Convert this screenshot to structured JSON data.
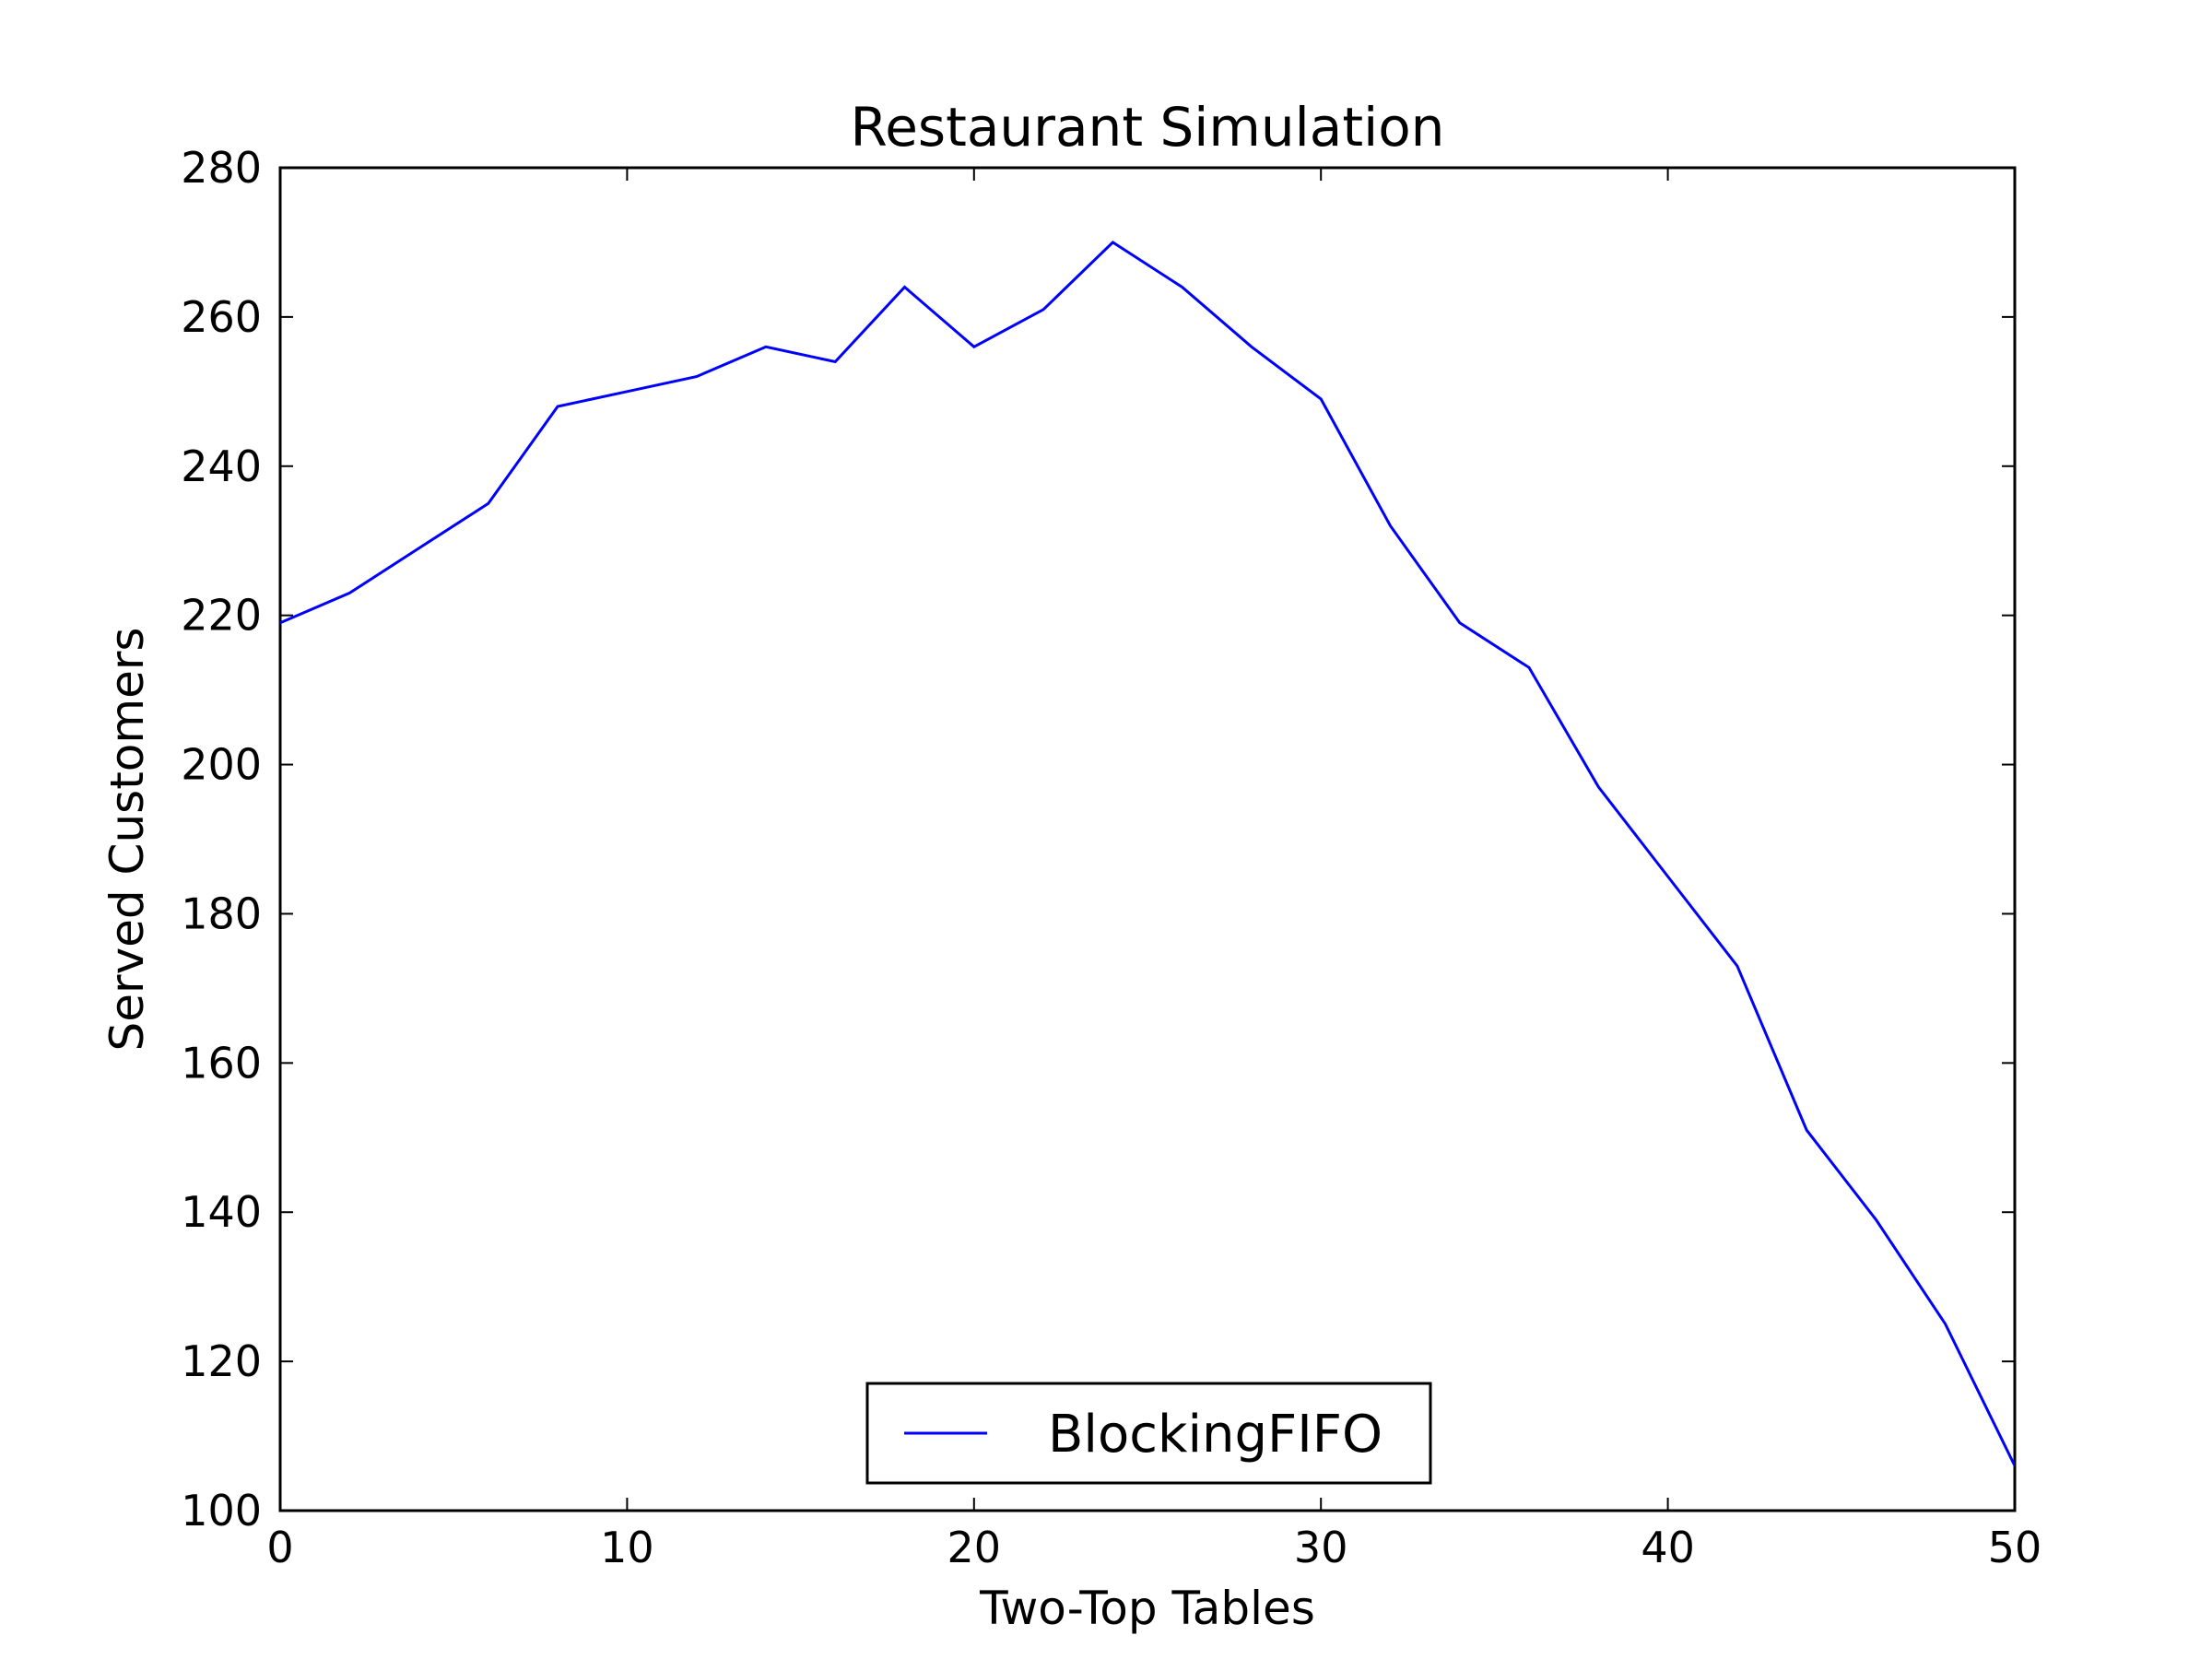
{
  "chart_data": {
    "type": "line",
    "title": "Restaurant Simulation",
    "xlabel": "Two-Top Tables",
    "ylabel": "Served Customers",
    "xlim": [
      0,
      50
    ],
    "ylim": [
      100,
      280
    ],
    "xticks": [
      0,
      10,
      20,
      30,
      40,
      50
    ],
    "yticks": [
      100,
      120,
      140,
      160,
      180,
      200,
      220,
      240,
      260,
      280
    ],
    "grid": false,
    "legend_position": "lower center",
    "series": [
      {
        "name": "BlockingFIFO",
        "color": "#0000ff",
        "x": [
          0,
          2,
          4,
          6,
          8,
          10,
          12,
          14,
          16,
          18,
          20,
          22,
          24,
          26,
          28,
          30,
          32,
          34,
          36,
          38,
          40,
          42,
          44,
          46,
          48,
          50
        ],
        "y": [
          219,
          223,
          229,
          235,
          248,
          250,
          252,
          256,
          254,
          264,
          256,
          261,
          270,
          264,
          256,
          249,
          232,
          219,
          213,
          197,
          185,
          173,
          151,
          139,
          125,
          106
        ]
      }
    ]
  }
}
